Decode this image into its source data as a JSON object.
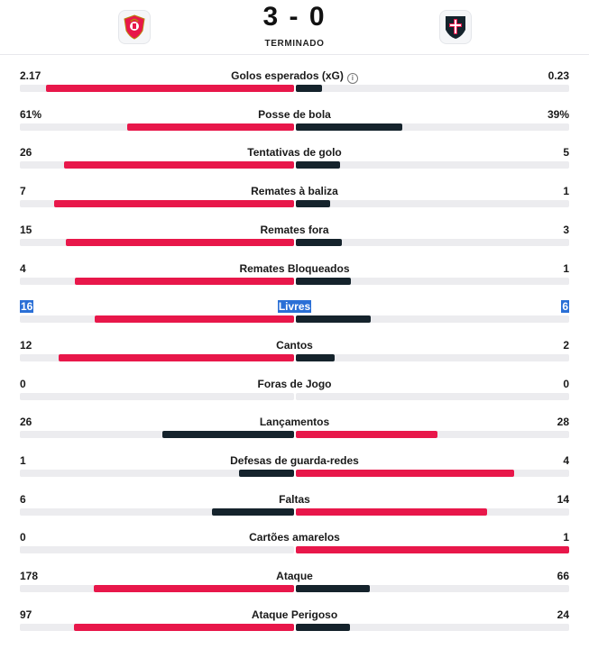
{
  "match": {
    "score": "3 - 0",
    "status": "TERMINADO",
    "home_crest_icon": "benfica-crest-icon",
    "away_crest_icon": "casa-pia-crest-icon"
  },
  "colors": {
    "home": "#e8174a",
    "away": "#15232c",
    "track": "#ececef",
    "highlight": "#2a6fd6"
  },
  "stats": [
    {
      "label": "Golos esperados (xG)",
      "home": "2.17",
      "away": "0.23",
      "home_share": 0.904,
      "away_share": 0.096,
      "info_icon": "ⓘ",
      "lead": "home"
    },
    {
      "label": "Posse de bola",
      "home": "61%",
      "away": "39%",
      "home_share": 0.61,
      "away_share": 0.39,
      "lead": "home"
    },
    {
      "label": "Tentativas de golo",
      "home": "26",
      "away": "5",
      "home_share": 0.839,
      "away_share": 0.161,
      "lead": "home"
    },
    {
      "label": "Remates à baliza",
      "home": "7",
      "away": "1",
      "home_share": 0.875,
      "away_share": 0.125,
      "lead": "home"
    },
    {
      "label": "Remates fora",
      "home": "15",
      "away": "3",
      "home_share": 0.833,
      "away_share": 0.167,
      "lead": "home"
    },
    {
      "label": "Remates Bloqueados",
      "home": "4",
      "away": "1",
      "home_share": 0.8,
      "away_share": 0.2,
      "lead": "home"
    },
    {
      "label": "Livres",
      "home": "16",
      "away": "6",
      "home_share": 0.727,
      "away_share": 0.273,
      "lead": "home",
      "selected": true
    },
    {
      "label": "Cantos",
      "home": "12",
      "away": "2",
      "home_share": 0.857,
      "away_share": 0.143,
      "lead": "home"
    },
    {
      "label": "Foras de Jogo",
      "home": "0",
      "away": "0",
      "home_share": 0,
      "away_share": 0,
      "lead": "none"
    },
    {
      "label": "Lançamentos",
      "home": "26",
      "away": "28",
      "home_share": 0.481,
      "away_share": 0.519,
      "lead": "away"
    },
    {
      "label": "Defesas de guarda-redes",
      "home": "1",
      "away": "4",
      "home_share": 0.2,
      "away_share": 0.8,
      "lead": "away"
    },
    {
      "label": "Faltas",
      "home": "6",
      "away": "14",
      "home_share": 0.3,
      "away_share": 0.7,
      "lead": "away"
    },
    {
      "label": "Cartões amarelos",
      "home": "0",
      "away": "1",
      "home_share": 0,
      "away_share": 1,
      "lead": "away"
    },
    {
      "label": "Ataque",
      "home": "178",
      "away": "66",
      "home_share": 0.73,
      "away_share": 0.27,
      "lead": "home"
    },
    {
      "label": "Ataque Perigoso",
      "home": "97",
      "away": "24",
      "home_share": 0.802,
      "away_share": 0.198,
      "lead": "home"
    }
  ]
}
